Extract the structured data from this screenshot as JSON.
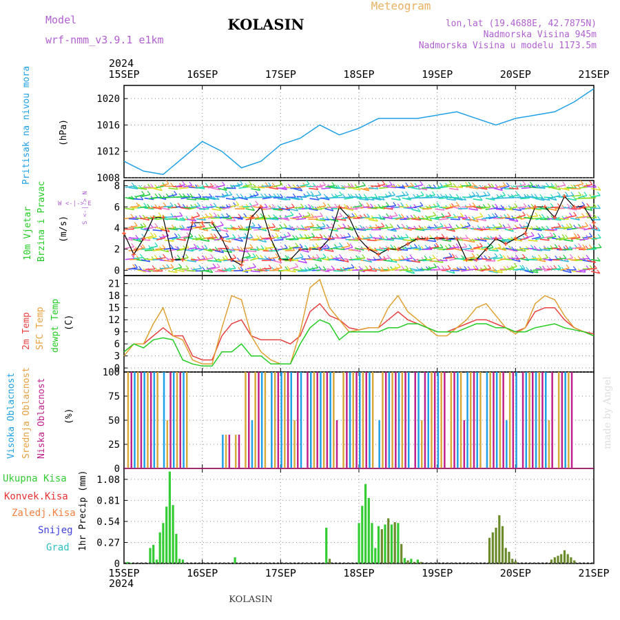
{
  "header": {
    "model_label": "Model",
    "model_value": "wrf-nmm_v3.9.1 e1km",
    "title": "KOLASIN",
    "meteogram_label": "Meteogram",
    "lonlat": "lon,lat (19.4688E, 42.7875N)",
    "elevation": "Nadmorska Visina 945m",
    "model_elevation": "Nadmorska Visina u modelu 1173.5m",
    "year_top": "2024",
    "year_bottom": "2024",
    "footer_title": "KOLASIN",
    "credit": "made by Angel"
  },
  "colors": {
    "pressure": "#1ea0e6",
    "temp2m": "#e84040",
    "sfc_temp": "#e0a030",
    "dewpt": "#22cc22",
    "high_cloud": "#1ea0e6",
    "mid_cloud": "#d8a838",
    "low_cloud": "#c0208a",
    "total_precip": "#33cc33",
    "convective": "#e83030",
    "frozen": "#f08040",
    "snow": "#4040e0",
    "hail": "#30c0c0",
    "label_purple": "#b060d0",
    "label_orange": "#e8a040"
  },
  "panels": {
    "pressure": {
      "label": "Pritisak na nivou mora",
      "unit": "(hPa)"
    },
    "wind": {
      "label1": "10m Vjetar",
      "label2": "Brzina i Pravac",
      "unit": "(m/s)",
      "compass": "W <-|-> E",
      "compass_ns": "S <-|-> N"
    },
    "temp": {
      "label1": "2m Temp",
      "label2": "SFC Temp",
      "label3": "dewpt Temp",
      "unit": "(C)"
    },
    "cloud": {
      "label1": "Visoka Oblacnost",
      "label2": "Srednja Oblacnost",
      "label3": "Niska Oblacnost",
      "unit": "(%)"
    },
    "precip": {
      "legend": [
        "Ukupna Kisa",
        "Konvek.Kisa",
        "Zaledj.Kisa",
        "Snijeg",
        "Grad"
      ],
      "unit": "1hr Precip (mm)"
    }
  },
  "chart_data": [
    {
      "type": "line",
      "name": "pressure",
      "x_ticks": [
        "15SEP",
        "16SEP",
        "17SEP",
        "18SEP",
        "19SEP",
        "20SEP",
        "21SEP"
      ],
      "ylim": [
        1008,
        1022
      ],
      "y_ticks": [
        1008,
        1012,
        1016,
        1020
      ],
      "grid": true,
      "series": [
        {
          "x_hours": [
            0,
            6,
            12,
            18,
            24,
            30,
            36,
            42,
            48,
            54,
            60,
            66,
            72,
            78,
            84,
            90,
            96,
            102,
            108,
            114,
            120,
            126,
            132,
            138,
            144
          ],
          "values": [
            1010.5,
            1009,
            1008.5,
            1011,
            1013.5,
            1012,
            1009.5,
            1010.5,
            1013,
            1014,
            1016,
            1014.5,
            1015.5,
            1017,
            1017,
            1017,
            1017.5,
            1018,
            1017,
            1016,
            1017,
            1017.5,
            1018,
            1019.5,
            1021.5
          ]
        }
      ]
    },
    {
      "type": "line",
      "name": "wind",
      "x_ticks": [
        "15SEP",
        "16SEP",
        "17SEP",
        "18SEP",
        "19SEP",
        "20SEP",
        "21SEP"
      ],
      "ylim": [
        -0.5,
        8.5
      ],
      "y_ticks": [
        0,
        2,
        4,
        6,
        8
      ],
      "grid": true,
      "series": [
        {
          "x_hours": [
            0,
            3,
            6,
            9,
            12,
            15,
            18,
            21,
            24,
            27,
            30,
            33,
            36,
            39,
            42,
            45,
            48,
            51,
            54,
            57,
            60,
            63,
            66,
            69,
            72,
            75,
            78,
            81,
            84,
            87,
            90,
            93,
            96,
            99,
            102,
            105,
            108,
            111,
            114,
            117,
            120,
            123,
            126,
            129,
            132,
            135,
            138,
            141,
            144
          ],
          "values": [
            3.5,
            1.5,
            3,
            5,
            5,
            1,
            1,
            4.5,
            4.5,
            4.5,
            3,
            1,
            0.5,
            5,
            6,
            3,
            1,
            1,
            2,
            2,
            2,
            3,
            6,
            5,
            3,
            2,
            1.5,
            2,
            2,
            2.5,
            3,
            3,
            3,
            3,
            3,
            1,
            1,
            2,
            3,
            2.5,
            3,
            3.5,
            6,
            6,
            5,
            7,
            6,
            6,
            4.5
          ]
        }
      ]
    },
    {
      "type": "line",
      "name": "temperature",
      "x_ticks": [
        "15SEP",
        "16SEP",
        "17SEP",
        "18SEP",
        "19SEP",
        "20SEP",
        "21SEP"
      ],
      "ylim": [
        -1,
        23
      ],
      "y_ticks": [
        0,
        3,
        6,
        9,
        12,
        15,
        18,
        21
      ],
      "grid": true,
      "series": [
        {
          "name": "2m Temp",
          "x_hours": [
            0,
            3,
            6,
            9,
            12,
            15,
            18,
            21,
            24,
            27,
            30,
            33,
            36,
            39,
            42,
            45,
            48,
            51,
            54,
            57,
            60,
            63,
            66,
            69,
            72,
            75,
            78,
            81,
            84,
            87,
            90,
            93,
            96,
            99,
            102,
            105,
            108,
            111,
            114,
            117,
            120,
            123,
            126,
            129,
            132,
            135,
            138,
            141,
            144
          ],
          "values": [
            4,
            6,
            6,
            8,
            10,
            8,
            8,
            3,
            2,
            2,
            8,
            11,
            12,
            8,
            7,
            7,
            7,
            6,
            8,
            14,
            16,
            13,
            12,
            10,
            9.5,
            10,
            10,
            12,
            14,
            12,
            11,
            10,
            9,
            9,
            10,
            11,
            12,
            12,
            11,
            10,
            9,
            10,
            14,
            15,
            15,
            12,
            10,
            9,
            8.5
          ]
        },
        {
          "name": "SFC Temp",
          "x_hours": [
            0,
            3,
            6,
            9,
            12,
            15,
            18,
            21,
            24,
            27,
            30,
            33,
            36,
            39,
            42,
            45,
            48,
            51,
            54,
            57,
            60,
            63,
            66,
            69,
            72,
            75,
            78,
            81,
            84,
            87,
            90,
            93,
            96,
            99,
            102,
            105,
            108,
            111,
            114,
            117,
            120,
            123,
            126,
            129,
            132,
            135,
            138,
            141,
            144
          ],
          "values": [
            3,
            6,
            6,
            11,
            15,
            8,
            7,
            2,
            1,
            1,
            10,
            18,
            17,
            8,
            4,
            2,
            1,
            1,
            9,
            20,
            22,
            15,
            12,
            9,
            9.5,
            10,
            10,
            15,
            18,
            14,
            12,
            10,
            8,
            8,
            10,
            12,
            15,
            16,
            13,
            10,
            8.5,
            10,
            16,
            18,
            17,
            13,
            10,
            9,
            8
          ]
        },
        {
          "name": "dewpt Temp",
          "x_hours": [
            0,
            3,
            6,
            9,
            12,
            15,
            18,
            21,
            24,
            27,
            30,
            33,
            36,
            39,
            42,
            45,
            48,
            51,
            54,
            57,
            60,
            63,
            66,
            69,
            72,
            75,
            78,
            81,
            84,
            87,
            90,
            93,
            96,
            99,
            102,
            105,
            108,
            111,
            114,
            117,
            120,
            123,
            126,
            129,
            132,
            135,
            138,
            141,
            144
          ],
          "values": [
            4,
            6,
            5,
            7,
            7.5,
            7,
            2,
            1,
            0.5,
            0.5,
            4,
            4,
            6,
            3,
            3,
            1,
            1,
            1,
            6,
            10,
            12,
            11,
            7,
            9,
            9,
            9,
            9,
            10,
            10,
            11,
            11,
            10,
            9,
            9,
            9,
            10,
            11,
            11,
            10,
            10,
            9,
            9,
            10,
            10.5,
            11,
            10,
            9.5,
            9,
            8
          ]
        }
      ]
    },
    {
      "type": "bar",
      "name": "cloud_cover",
      "x_ticks": [
        "15SEP",
        "16SEP",
        "17SEP",
        "18SEP",
        "19SEP",
        "20SEP",
        "21SEP"
      ],
      "ylim": [
        0,
        100
      ],
      "y_ticks": [
        0,
        25,
        50,
        75,
        100
      ],
      "grid": true,
      "coverage_segments_hours": [
        {
          "start": 1,
          "end": 20,
          "level": 100
        },
        {
          "start": 37,
          "end": 138,
          "level": 100
        },
        {
          "start": 30,
          "end": 36,
          "level": 35
        }
      ]
    },
    {
      "type": "bar",
      "name": "precipitation",
      "x_ticks": [
        "15SEP",
        "16SEP",
        "17SEP",
        "18SEP",
        "19SEP",
        "20SEP",
        "21SEP"
      ],
      "ylim": [
        0,
        1.22
      ],
      "y_ticks": [
        0,
        0.27,
        0.54,
        0.81,
        1.08
      ],
      "grid": true,
      "series": [
        {
          "name": "Ukupna Kisa",
          "x_hours": [
            1,
            2,
            8,
            9,
            10,
            11,
            12,
            13,
            14,
            15,
            16,
            17,
            18,
            34,
            62,
            63,
            72,
            73,
            74,
            75,
            76,
            77,
            78,
            79,
            80,
            81,
            82,
            83,
            84,
            85,
            86,
            87,
            88,
            89,
            90,
            91,
            112,
            113,
            114,
            115,
            116,
            117,
            118,
            119,
            120,
            131,
            132,
            133,
            134,
            135,
            136,
            137,
            138
          ],
          "values": [
            0.02,
            0.01,
            0.2,
            0.24,
            0.05,
            0.4,
            0.52,
            0.73,
            1.18,
            0.75,
            0.38,
            0.06,
            0.05,
            0.08,
            0.46,
            0.06,
            0.52,
            0.74,
            1.02,
            0.84,
            0.52,
            0.2,
            0.48,
            0.44,
            0.5,
            0.58,
            0.5,
            0.53,
            0.52,
            0.25,
            0.07,
            0.04,
            0.06,
            0.02,
            0.05,
            0.02,
            0.33,
            0.4,
            0.46,
            0.62,
            0.48,
            0.2,
            0.15,
            0.06,
            0.03,
            0.05,
            0.08,
            0.1,
            0.12,
            0.17,
            0.12,
            0.08,
            0.04
          ]
        }
      ]
    }
  ]
}
